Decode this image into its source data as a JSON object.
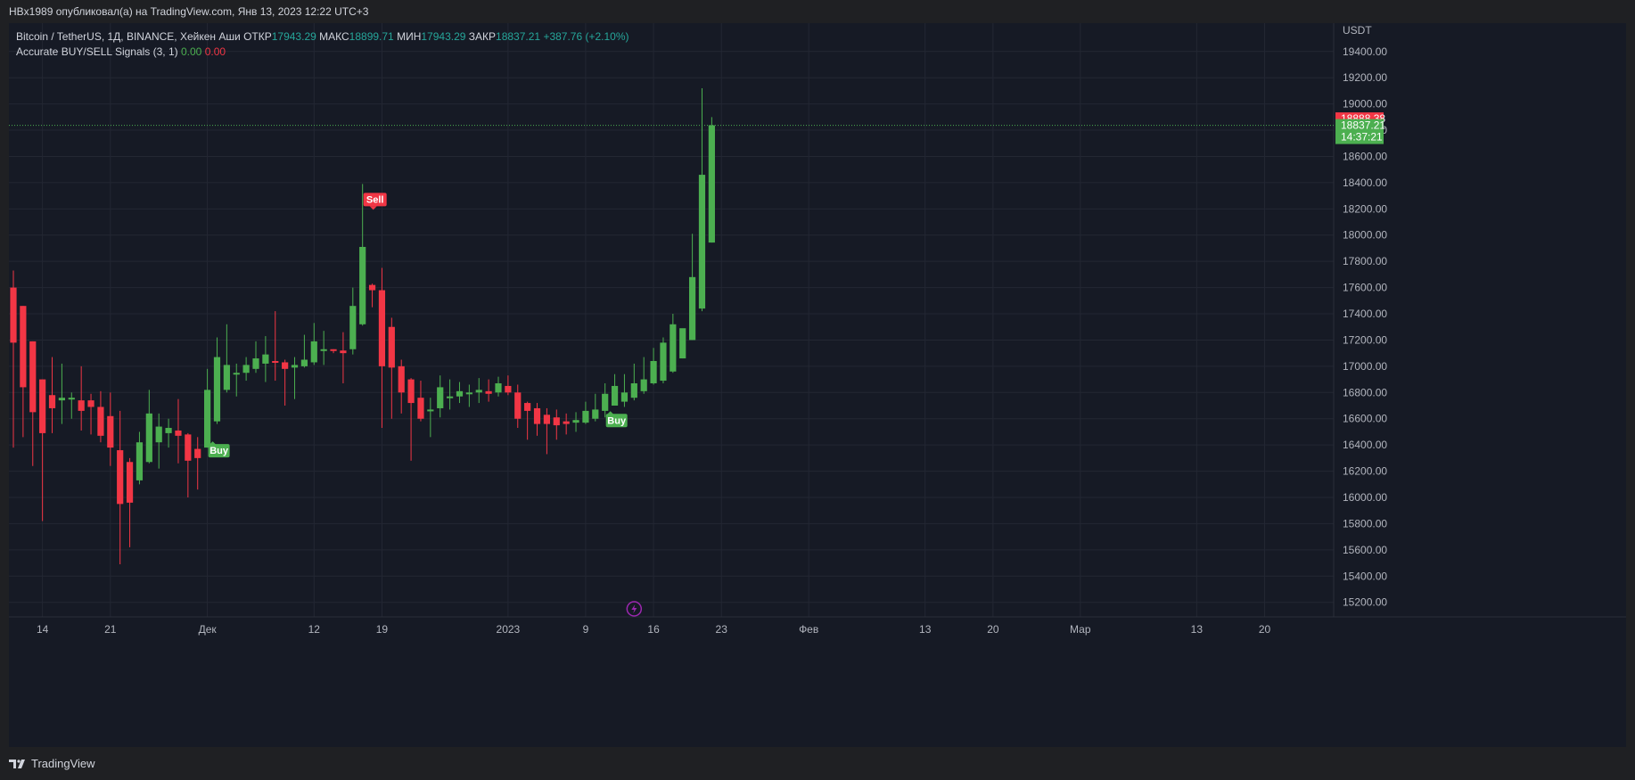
{
  "header": {
    "published_text": "HBx1989 опубликовал(а) на TradingView.com, Янв 13, 2023 12:22 UTC+3"
  },
  "legend": {
    "symbol": "Bitcoin / TetherUS, 1Д, BINANCE, Хейкен Аши",
    "open_label": "ОТКР",
    "open_value": "17943.29",
    "high_label": "МАКС",
    "high_value": "18899.71",
    "low_label": "МИН",
    "low_value": "17943.29",
    "close_label": "ЗАКР",
    "close_value": "18837.21",
    "change": "+387.76 (+2.10%)",
    "indicator_name": "Accurate BUY/SELL Signals (3, 1)",
    "indicator_val1": "0.00",
    "indicator_val2": "0.00"
  },
  "footer": {
    "brand": "TradingView"
  },
  "colors": {
    "background": "#161a25",
    "up": "#4caf50",
    "down": "#f23645",
    "grid": "#232733",
    "last_price_red": "#f23645",
    "last_price_green": "#4caf50",
    "event_icon": "#9c27b0"
  },
  "chart_data": {
    "type": "candlestick",
    "style": "heikin-ashi",
    "symbol": "Bitcoin / TetherUS",
    "interval": "1Д",
    "exchange": "BINANCE",
    "currency": "USDT",
    "ylim": [
      15130,
      19480
    ],
    "y_ticks": [
      "15200.00",
      "15400.00",
      "15600.00",
      "15800.00",
      "16000.00",
      "16200.00",
      "16400.00",
      "16600.00",
      "16800.00",
      "17000.00",
      "17200.00",
      "17400.00",
      "17600.00",
      "17800.00",
      "18000.00",
      "18200.00",
      "18400.00",
      "18600.00",
      "18800.00",
      "19000.00",
      "19200.00",
      "19400.00"
    ],
    "x_ticks": [
      {
        "label": "14",
        "i": 3
      },
      {
        "label": "21",
        "i": 10
      },
      {
        "label": "Дек",
        "i": 20
      },
      {
        "label": "12",
        "i": 31
      },
      {
        "label": "19",
        "i": 38
      },
      {
        "label": "2023",
        "i": 51
      },
      {
        "label": "9",
        "i": 59
      },
      {
        "label": "16",
        "i": 66
      },
      {
        "label": "23",
        "i": 73
      },
      {
        "label": "Фев",
        "i": 82
      },
      {
        "label": "13",
        "i": 94
      },
      {
        "label": "20",
        "i": 101
      },
      {
        "label": "Мар",
        "i": 110
      },
      {
        "label": "13",
        "i": 122
      },
      {
        "label": "20",
        "i": 129
      }
    ],
    "candles": [
      {
        "o": 17600,
        "h": 17730,
        "l": 16380,
        "c": 17180
      },
      {
        "o": 17460,
        "h": 17460,
        "l": 16460,
        "c": 16840
      },
      {
        "o": 17190,
        "h": 17190,
        "l": 16240,
        "c": 16650
      },
      {
        "o": 16900,
        "h": 16900,
        "l": 15820,
        "c": 16490
      },
      {
        "o": 16780,
        "h": 17070,
        "l": 16490,
        "c": 16680
      },
      {
        "o": 16740,
        "h": 17020,
        "l": 16560,
        "c": 16760
      },
      {
        "o": 16760,
        "h": 16800,
        "l": 16600,
        "c": 16760
      },
      {
        "o": 16740,
        "h": 17000,
        "l": 16510,
        "c": 16660
      },
      {
        "o": 16740,
        "h": 16790,
        "l": 16480,
        "c": 16690
      },
      {
        "o": 16690,
        "h": 16810,
        "l": 16420,
        "c": 16470
      },
      {
        "o": 16620,
        "h": 16800,
        "l": 16240,
        "c": 16380
      },
      {
        "o": 16360,
        "h": 16660,
        "l": 15490,
        "c": 15950
      },
      {
        "o": 16270,
        "h": 16300,
        "l": 15620,
        "c": 15960
      },
      {
        "o": 16130,
        "h": 16500,
        "l": 16100,
        "c": 16420
      },
      {
        "o": 16270,
        "h": 16820,
        "l": 16260,
        "c": 16640
      },
      {
        "o": 16420,
        "h": 16640,
        "l": 16220,
        "c": 16540
      },
      {
        "o": 16490,
        "h": 16600,
        "l": 16380,
        "c": 16530
      },
      {
        "o": 16510,
        "h": 16750,
        "l": 16260,
        "c": 16470
      },
      {
        "o": 16480,
        "h": 16490,
        "l": 16000,
        "c": 16280
      },
      {
        "o": 16370,
        "h": 16460,
        "l": 16060,
        "c": 16300
      },
      {
        "o": 16380,
        "h": 16980,
        "l": 16380,
        "c": 16820
      },
      {
        "o": 16580,
        "h": 17220,
        "l": 16560,
        "c": 17070
      },
      {
        "o": 16820,
        "h": 17320,
        "l": 16800,
        "c": 17010
      },
      {
        "o": 16940,
        "h": 17020,
        "l": 16770,
        "c": 16950
      },
      {
        "o": 16950,
        "h": 17070,
        "l": 16890,
        "c": 17010
      },
      {
        "o": 16980,
        "h": 17190,
        "l": 16950,
        "c": 17060
      },
      {
        "o": 17020,
        "h": 17230,
        "l": 16880,
        "c": 17090
      },
      {
        "o": 17040,
        "h": 17420,
        "l": 16890,
        "c": 17030
      },
      {
        "o": 17030,
        "h": 17050,
        "l": 16700,
        "c": 16980
      },
      {
        "o": 16990,
        "h": 17070,
        "l": 16750,
        "c": 17010
      },
      {
        "o": 17000,
        "h": 17240,
        "l": 16990,
        "c": 17050
      },
      {
        "o": 17030,
        "h": 17330,
        "l": 17010,
        "c": 17190
      },
      {
        "o": 17130,
        "h": 17270,
        "l": 17010,
        "c": 17130
      },
      {
        "o": 17130,
        "h": 17130,
        "l": 17100,
        "c": 17120
      },
      {
        "o": 17120,
        "h": 17260,
        "l": 16870,
        "c": 17100
      },
      {
        "o": 17130,
        "h": 17600,
        "l": 17090,
        "c": 17460
      },
      {
        "o": 17320,
        "h": 18390,
        "l": 17310,
        "c": 17910
      },
      {
        "o": 17620,
        "h": 17630,
        "l": 17450,
        "c": 17580
      },
      {
        "o": 17580,
        "h": 17750,
        "l": 16530,
        "c": 17000
      },
      {
        "o": 17300,
        "h": 17370,
        "l": 16600,
        "c": 16990
      },
      {
        "o": 17000,
        "h": 17050,
        "l": 16640,
        "c": 16800
      },
      {
        "o": 16900,
        "h": 16910,
        "l": 16280,
        "c": 16720
      },
      {
        "o": 16760,
        "h": 16890,
        "l": 16580,
        "c": 16600
      },
      {
        "o": 16660,
        "h": 16760,
        "l": 16460,
        "c": 16670
      },
      {
        "o": 16680,
        "h": 16930,
        "l": 16610,
        "c": 16840
      },
      {
        "o": 16760,
        "h": 16900,
        "l": 16670,
        "c": 16770
      },
      {
        "o": 16770,
        "h": 16880,
        "l": 16720,
        "c": 16810
      },
      {
        "o": 16790,
        "h": 16860,
        "l": 16690,
        "c": 16800
      },
      {
        "o": 16800,
        "h": 16910,
        "l": 16720,
        "c": 16820
      },
      {
        "o": 16810,
        "h": 16900,
        "l": 16730,
        "c": 16790
      },
      {
        "o": 16800,
        "h": 16920,
        "l": 16770,
        "c": 16870
      },
      {
        "o": 16850,
        "h": 16930,
        "l": 16780,
        "c": 16800
      },
      {
        "o": 16800,
        "h": 16860,
        "l": 16530,
        "c": 16600
      },
      {
        "o": 16720,
        "h": 16730,
        "l": 16440,
        "c": 16660
      },
      {
        "o": 16680,
        "h": 16720,
        "l": 16470,
        "c": 16560
      },
      {
        "o": 16630,
        "h": 16680,
        "l": 16330,
        "c": 16560
      },
      {
        "o": 16610,
        "h": 16670,
        "l": 16440,
        "c": 16550
      },
      {
        "o": 16580,
        "h": 16640,
        "l": 16480,
        "c": 16560
      },
      {
        "o": 16570,
        "h": 16650,
        "l": 16500,
        "c": 16590
      },
      {
        "o": 16570,
        "h": 16730,
        "l": 16560,
        "c": 16660
      },
      {
        "o": 16600,
        "h": 16790,
        "l": 16580,
        "c": 16670
      },
      {
        "o": 16660,
        "h": 16870,
        "l": 16610,
        "c": 16790
      },
      {
        "o": 16700,
        "h": 16940,
        "l": 16700,
        "c": 16850
      },
      {
        "o": 16730,
        "h": 16940,
        "l": 16690,
        "c": 16800
      },
      {
        "o": 16760,
        "h": 17020,
        "l": 16740,
        "c": 16870
      },
      {
        "o": 16810,
        "h": 17070,
        "l": 16790,
        "c": 16900
      },
      {
        "o": 16870,
        "h": 17140,
        "l": 16860,
        "c": 17040
      },
      {
        "o": 16890,
        "h": 17220,
        "l": 16870,
        "c": 17180
      },
      {
        "o": 16960,
        "h": 17400,
        "l": 16950,
        "c": 17320
      },
      {
        "o": 17060,
        "h": 17280,
        "l": 17060,
        "c": 17290
      },
      {
        "o": 17200,
        "h": 18010,
        "l": 17200,
        "c": 17680
      },
      {
        "o": 17440,
        "h": 19120,
        "l": 17420,
        "c": 18460
      },
      {
        "o": 17943.29,
        "h": 18899.71,
        "l": 17943.29,
        "c": 18837.21
      }
    ],
    "signals": [
      {
        "type": "Buy",
        "i": 20
      },
      {
        "type": "Sell",
        "i": 36
      },
      {
        "type": "Buy",
        "i": 61
      }
    ],
    "last_price_red": "18888.38",
    "last_price_green": "18837.21",
    "countdown": "14:37:21"
  }
}
